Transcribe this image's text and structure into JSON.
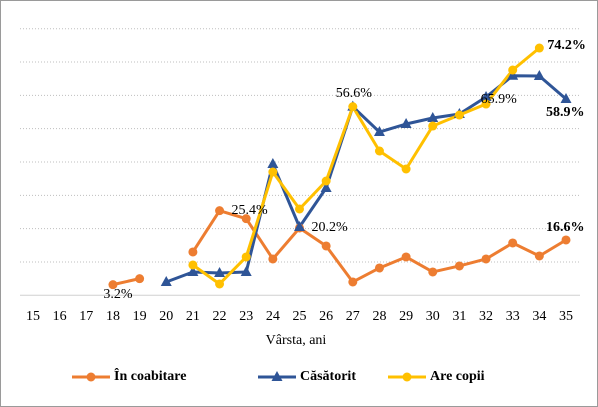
{
  "chart_data": {
    "type": "line",
    "xlabel": "Vârsta, ani",
    "categories": [
      "15",
      "16",
      "17",
      "18",
      "19",
      "20",
      "21",
      "22",
      "23",
      "24",
      "25",
      "26",
      "27",
      "28",
      "29",
      "30",
      "31",
      "32",
      "33",
      "34",
      "35"
    ],
    "ylim": [
      0,
      80
    ],
    "yticks": [
      0,
      10,
      20,
      30,
      40,
      50,
      60,
      70,
      80
    ],
    "grid": true,
    "legend": "bottom",
    "series": [
      {
        "name": "În coabitare",
        "color": "#ed7d31",
        "marker": "circle",
        "values": [
          null,
          null,
          null,
          3.2,
          5.0,
          null,
          13.0,
          25.4,
          23.0,
          10.9,
          20.2,
          14.8,
          4.0,
          8.2,
          11.5,
          7.0,
          8.8,
          10.9,
          15.7,
          11.8,
          16.6
        ],
        "value_labels": [
          null,
          null,
          null,
          "3.2%",
          null,
          null,
          null,
          "25.4%",
          null,
          null,
          "20.2%",
          null,
          null,
          null,
          null,
          null,
          null,
          null,
          null,
          null,
          "16.6%"
        ]
      },
      {
        "name": "Căsătorit",
        "color": "#2f5597",
        "marker": "triangle",
        "values": [
          null,
          null,
          null,
          null,
          null,
          4.0,
          7.0,
          6.7,
          7.0,
          39.4,
          20.5,
          32.2,
          56.6,
          49.0,
          51.4,
          53.2,
          54.4,
          59.5,
          65.9,
          65.8,
          58.9
        ],
        "value_labels": [
          null,
          null,
          null,
          null,
          null,
          null,
          null,
          null,
          null,
          null,
          null,
          null,
          "56.6%",
          null,
          null,
          null,
          null,
          null,
          "65.9%",
          null,
          "58.9%"
        ]
      },
      {
        "name": "Are copii",
        "color": "#ffc000",
        "marker": "circle",
        "values": [
          null,
          null,
          null,
          null,
          null,
          null,
          9.1,
          3.4,
          11.5,
          37.0,
          25.9,
          34.3,
          56.6,
          43.3,
          37.9,
          50.8,
          54.1,
          57.4,
          67.6,
          74.2,
          null
        ],
        "value_labels": [
          null,
          null,
          null,
          null,
          null,
          null,
          null,
          null,
          null,
          null,
          null,
          null,
          null,
          null,
          null,
          null,
          null,
          null,
          null,
          "74.2%",
          null
        ]
      }
    ]
  }
}
